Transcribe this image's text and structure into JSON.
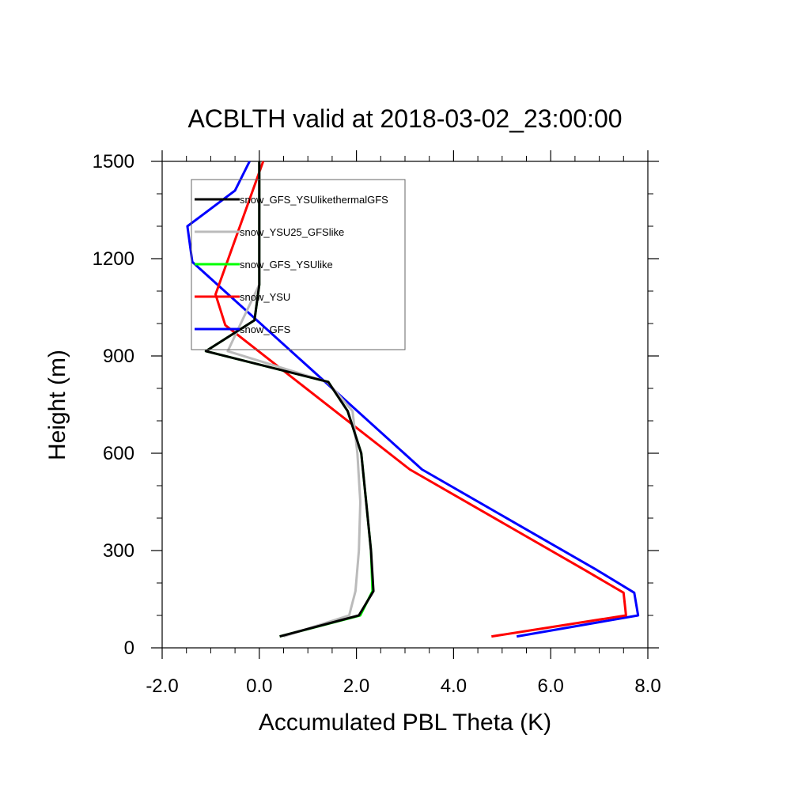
{
  "chart_data": {
    "type": "line",
    "title": "ACBLTH valid at 2018-03-02_23:00:00",
    "xlabel": "Accumulated PBL Theta (K)",
    "ylabel": "Height (m)",
    "xlim": [
      -2.0,
      8.0
    ],
    "ylim": [
      0,
      1500
    ],
    "x_ticks": [
      "-2.0",
      "0.0",
      "2.0",
      "4.0",
      "6.0",
      "8.0"
    ],
    "y_ticks": [
      "0",
      "300",
      "600",
      "900",
      "1200",
      "1500"
    ],
    "x_tick_values": [
      -2,
      0,
      2,
      4,
      6,
      8
    ],
    "y_tick_values": [
      0,
      300,
      600,
      900,
      1200,
      1500
    ],
    "grid": false,
    "legend_position": "top-left",
    "series": [
      {
        "name": "snow_GFS_YSUlikethermalGFS",
        "color": "#000000",
        "x": [
          0.42,
          2.05,
          2.35,
          2.3,
          2.2,
          2.1,
          1.82,
          1.42,
          -1.1,
          -0.1,
          0.0,
          0.0,
          0.0,
          0.0
        ],
        "y": [
          35,
          100,
          175,
          300,
          450,
          600,
          730,
          820,
          915,
          1010,
          1120,
          1200,
          1400,
          1500
        ]
      },
      {
        "name": "snow_YSU25_GFSlike",
        "color": "#bbbbbb",
        "x": [
          0.5,
          1.85,
          1.98,
          2.05,
          2.08,
          2.02,
          1.92,
          1.4,
          -0.65,
          -0.35,
          0.0,
          0.0,
          0.0,
          0.0
        ],
        "y": [
          35,
          100,
          175,
          300,
          450,
          600,
          730,
          820,
          915,
          1010,
          1120,
          1200,
          1400,
          1500
        ]
      },
      {
        "name": "snow_GFS_YSUlike",
        "color": "#00ff00",
        "x": [
          0.42,
          2.08,
          2.33,
          2.3,
          2.2,
          2.1,
          1.82,
          1.42,
          -1.1,
          -0.1,
          0.0,
          0.0,
          0.0,
          0.0
        ],
        "y": [
          35,
          100,
          175,
          300,
          450,
          600,
          730,
          820,
          915,
          1010,
          1120,
          1200,
          1400,
          1500
        ]
      },
      {
        "name": "snow_YSU",
        "color": "#ff0000",
        "x": [
          4.78,
          7.55,
          7.5,
          6.7,
          3.1,
          -0.7,
          -0.9,
          0.08
        ],
        "y": [
          35,
          100,
          170,
          240,
          550,
          995,
          1090,
          1500
        ]
      },
      {
        "name": "snow_GFS",
        "color": "#0000ff",
        "x": [
          5.3,
          7.8,
          7.72,
          6.95,
          3.35,
          -1.38,
          -1.48,
          -0.5,
          -0.2
        ],
        "y": [
          35,
          100,
          170,
          240,
          550,
          1190,
          1300,
          1410,
          1500
        ]
      }
    ]
  }
}
